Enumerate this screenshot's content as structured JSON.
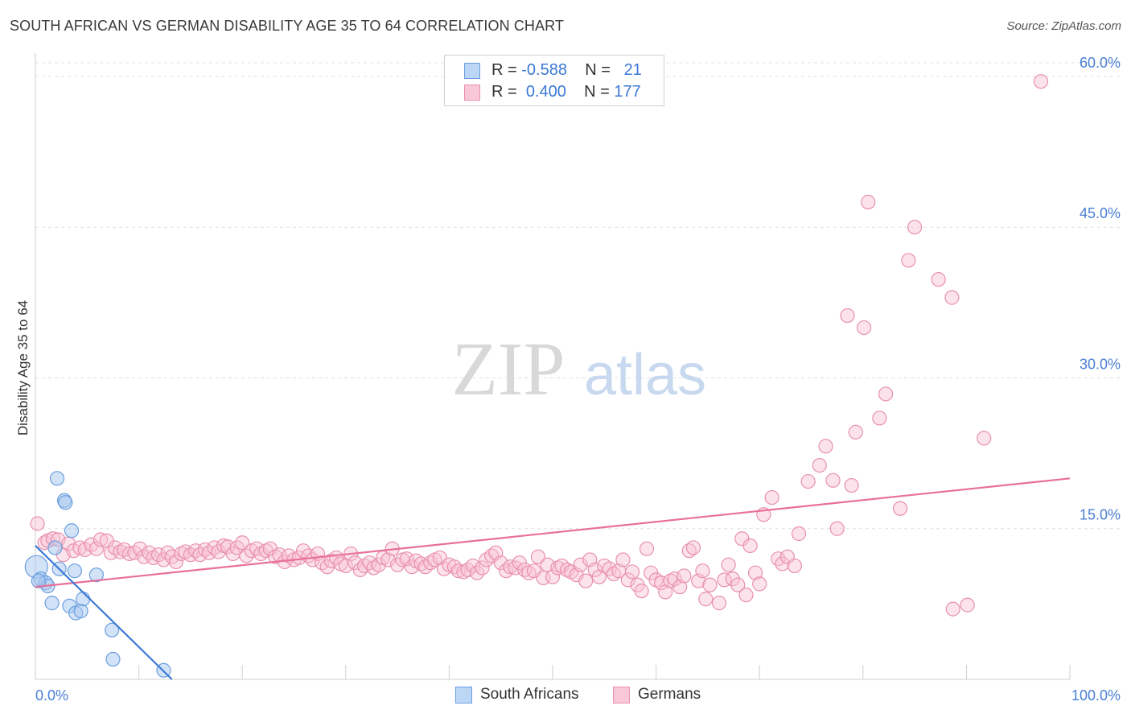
{
  "title": "SOUTH AFRICAN VS GERMAN DISABILITY AGE 35 TO 64 CORRELATION CHART",
  "source": "Source: ZipAtlas.com",
  "watermark": {
    "zip": "ZIP",
    "atlas": "atlas"
  },
  "legend": {
    "r_label": "R =",
    "n_label": "N =",
    "rows": [
      {
        "r": "-0.588",
        "n": "21",
        "color": "#a8c8f0",
        "border": "#6a9ee0"
      },
      {
        "r": "0.400",
        "n": "177",
        "color": "#f8c0d2",
        "border": "#e890ae"
      }
    ]
  },
  "bottom_legend": [
    {
      "label": "South Africans",
      "color": "#a8c8f0",
      "border": "#6a9ee0"
    },
    {
      "label": "Germans",
      "color": "#f8c0d2",
      "border": "#e890ae"
    }
  ],
  "chart_data": {
    "type": "scatter",
    "title": "SOUTH AFRICAN VS GERMAN DISABILITY AGE 35 TO 64 CORRELATION CHART",
    "xlabel": "",
    "ylabel": "Disability Age 35 to 64",
    "xlim": [
      0,
      100
    ],
    "ylim": [
      0,
      62
    ],
    "x_tick_labels": [
      "0.0%",
      "100.0%"
    ],
    "y_ticks": [
      15,
      30,
      45,
      60
    ],
    "y_tick_labels": [
      "15.0%",
      "30.0%",
      "45.0%",
      "60.0%"
    ],
    "grid": true,
    "legend_position": "top-center",
    "colors": {
      "south_africans": "#6a9ee0",
      "germans": "#e890ae",
      "sa_line": "#3b78d6",
      "de_line": "#e8709a"
    },
    "series": [
      {
        "name": "South Africans",
        "trend": {
          "x": [
            0,
            13.2
          ],
          "y": [
            13.3,
            0
          ]
        },
        "points": [
          [
            0.1,
            11.2
          ],
          [
            0.5,
            10.0
          ],
          [
            1.0,
            9.6
          ],
          [
            1.2,
            9.3
          ],
          [
            1.6,
            7.6
          ],
          [
            1.9,
            13.1
          ],
          [
            2.1,
            20.0
          ],
          [
            2.3,
            11.0
          ],
          [
            2.8,
            17.8
          ],
          [
            2.9,
            17.6
          ],
          [
            3.3,
            7.3
          ],
          [
            3.5,
            14.8
          ],
          [
            3.8,
            10.8
          ],
          [
            3.9,
            6.6
          ],
          [
            4.4,
            6.8
          ],
          [
            4.6,
            8.0
          ],
          [
            5.9,
            10.4
          ],
          [
            7.4,
            4.9
          ],
          [
            7.5,
            2.0
          ],
          [
            12.4,
            0.9
          ],
          [
            0.3,
            9.8
          ]
        ]
      },
      {
        "name": "Germans",
        "trend": {
          "x": [
            0,
            100
          ],
          "y": [
            9.2,
            20.0
          ]
        },
        "points": [
          [
            0.2,
            15.5
          ],
          [
            0.9,
            13.6
          ],
          [
            1.2,
            13.8
          ],
          [
            1.7,
            14.0
          ],
          [
            2.2,
            13.9
          ],
          [
            2.7,
            12.4
          ],
          [
            3.2,
            13.5
          ],
          [
            3.7,
            12.8
          ],
          [
            4.3,
            13.1
          ],
          [
            4.8,
            12.9
          ],
          [
            5.4,
            13.4
          ],
          [
            5.9,
            13.0
          ],
          [
            6.3,
            13.9
          ],
          [
            6.9,
            13.8
          ],
          [
            7.3,
            12.6
          ],
          [
            7.7,
            13.1
          ],
          [
            8.2,
            12.7
          ],
          [
            8.6,
            12.9
          ],
          [
            9.1,
            12.5
          ],
          [
            9.6,
            12.6
          ],
          [
            10.1,
            13.0
          ],
          [
            10.5,
            12.2
          ],
          [
            11.0,
            12.6
          ],
          [
            11.4,
            12.1
          ],
          [
            11.9,
            12.4
          ],
          [
            12.4,
            11.9
          ],
          [
            12.8,
            12.6
          ],
          [
            13.2,
            12.2
          ],
          [
            13.6,
            11.7
          ],
          [
            14.1,
            12.5
          ],
          [
            14.5,
            12.7
          ],
          [
            15.0,
            12.4
          ],
          [
            15.5,
            12.8
          ],
          [
            15.9,
            12.4
          ],
          [
            16.4,
            12.9
          ],
          [
            16.8,
            12.6
          ],
          [
            17.3,
            13.1
          ],
          [
            17.7,
            12.7
          ],
          [
            18.2,
            13.3
          ],
          [
            18.6,
            13.2
          ],
          [
            19.1,
            12.5
          ],
          [
            19.5,
            13.1
          ],
          [
            20.0,
            13.6
          ],
          [
            20.4,
            12.3
          ],
          [
            20.9,
            12.8
          ],
          [
            21.4,
            13.0
          ],
          [
            21.8,
            12.5
          ],
          [
            22.3,
            12.8
          ],
          [
            22.7,
            13.0
          ],
          [
            23.2,
            12.2
          ],
          [
            23.6,
            12.4
          ],
          [
            24.1,
            11.7
          ],
          [
            24.5,
            12.3
          ],
          [
            25.0,
            11.9
          ],
          [
            25.5,
            12.1
          ],
          [
            25.9,
            12.8
          ],
          [
            26.4,
            12.3
          ],
          [
            26.8,
            11.9
          ],
          [
            27.3,
            12.5
          ],
          [
            27.7,
            11.6
          ],
          [
            28.2,
            11.2
          ],
          [
            28.6,
            11.8
          ],
          [
            29.1,
            12.1
          ],
          [
            29.5,
            11.5
          ],
          [
            30.0,
            11.3
          ],
          [
            30.5,
            12.5
          ],
          [
            30.9,
            11.6
          ],
          [
            31.4,
            10.9
          ],
          [
            31.8,
            11.3
          ],
          [
            32.3,
            11.6
          ],
          [
            32.7,
            11.1
          ],
          [
            33.2,
            11.4
          ],
          [
            33.6,
            12.1
          ],
          [
            34.1,
            11.9
          ],
          [
            34.5,
            13.0
          ],
          [
            35.0,
            11.4
          ],
          [
            35.5,
            11.9
          ],
          [
            35.9,
            12.0
          ],
          [
            36.4,
            11.2
          ],
          [
            36.8,
            11.8
          ],
          [
            37.3,
            11.5
          ],
          [
            37.7,
            11.2
          ],
          [
            38.2,
            11.6
          ],
          [
            38.6,
            11.9
          ],
          [
            39.1,
            12.1
          ],
          [
            39.5,
            11.0
          ],
          [
            40.0,
            11.4
          ],
          [
            40.5,
            11.2
          ],
          [
            40.9,
            10.8
          ],
          [
            41.4,
            10.7
          ],
          [
            41.8,
            10.9
          ],
          [
            42.3,
            11.3
          ],
          [
            42.7,
            10.6
          ],
          [
            43.2,
            11.1
          ],
          [
            43.6,
            11.9
          ],
          [
            44.1,
            12.3
          ],
          [
            44.5,
            12.6
          ],
          [
            45.0,
            11.6
          ],
          [
            45.5,
            10.8
          ],
          [
            45.9,
            11.2
          ],
          [
            46.4,
            11.1
          ],
          [
            46.8,
            11.6
          ],
          [
            47.3,
            10.9
          ],
          [
            47.7,
            10.6
          ],
          [
            48.2,
            10.8
          ],
          [
            48.6,
            12.2
          ],
          [
            49.1,
            10.1
          ],
          [
            49.5,
            11.4
          ],
          [
            50.0,
            10.2
          ],
          [
            50.5,
            11.1
          ],
          [
            50.9,
            11.3
          ],
          [
            51.4,
            10.9
          ],
          [
            51.8,
            10.7
          ],
          [
            52.3,
            10.4
          ],
          [
            52.7,
            11.4
          ],
          [
            53.2,
            9.8
          ],
          [
            53.6,
            11.9
          ],
          [
            54.1,
            10.9
          ],
          [
            54.5,
            10.2
          ],
          [
            55.0,
            11.3
          ],
          [
            55.5,
            11.0
          ],
          [
            55.9,
            10.5
          ],
          [
            56.4,
            10.8
          ],
          [
            56.8,
            11.9
          ],
          [
            57.3,
            9.9
          ],
          [
            57.7,
            10.7
          ],
          [
            58.2,
            9.4
          ],
          [
            58.6,
            8.8
          ],
          [
            59.1,
            13.0
          ],
          [
            59.5,
            10.6
          ],
          [
            60.0,
            9.9
          ],
          [
            60.5,
            9.6
          ],
          [
            60.9,
            8.7
          ],
          [
            61.4,
            9.8
          ],
          [
            61.8,
            10.0
          ],
          [
            62.3,
            9.2
          ],
          [
            62.7,
            10.3
          ],
          [
            63.2,
            12.8
          ],
          [
            63.6,
            13.1
          ],
          [
            64.1,
            9.8
          ],
          [
            64.5,
            10.8
          ],
          [
            64.8,
            8.0
          ],
          [
            65.2,
            9.4
          ],
          [
            66.1,
            7.6
          ],
          [
            66.6,
            9.9
          ],
          [
            67.0,
            11.4
          ],
          [
            67.4,
            10.0
          ],
          [
            67.9,
            9.4
          ],
          [
            68.3,
            14.0
          ],
          [
            68.7,
            8.4
          ],
          [
            69.1,
            13.3
          ],
          [
            69.6,
            10.6
          ],
          [
            70.0,
            9.5
          ],
          [
            70.4,
            16.4
          ],
          [
            71.2,
            18.1
          ],
          [
            71.8,
            12.0
          ],
          [
            72.2,
            11.5
          ],
          [
            72.7,
            12.2
          ],
          [
            73.4,
            11.3
          ],
          [
            73.8,
            14.5
          ],
          [
            74.7,
            19.7
          ],
          [
            75.8,
            21.3
          ],
          [
            76.4,
            23.2
          ],
          [
            77.1,
            19.8
          ],
          [
            77.5,
            15.0
          ],
          [
            78.5,
            36.2
          ],
          [
            78.9,
            19.3
          ],
          [
            79.3,
            24.6
          ],
          [
            80.1,
            35.0
          ],
          [
            80.5,
            47.5
          ],
          [
            81.6,
            26.0
          ],
          [
            82.2,
            28.4
          ],
          [
            83.6,
            17.0
          ],
          [
            84.4,
            41.7
          ],
          [
            85.0,
            45.0
          ],
          [
            87.3,
            39.8
          ],
          [
            88.6,
            38.0
          ],
          [
            88.7,
            7.0
          ],
          [
            90.1,
            7.4
          ],
          [
            91.7,
            24.0
          ],
          [
            97.2,
            59.5
          ]
        ]
      }
    ]
  }
}
